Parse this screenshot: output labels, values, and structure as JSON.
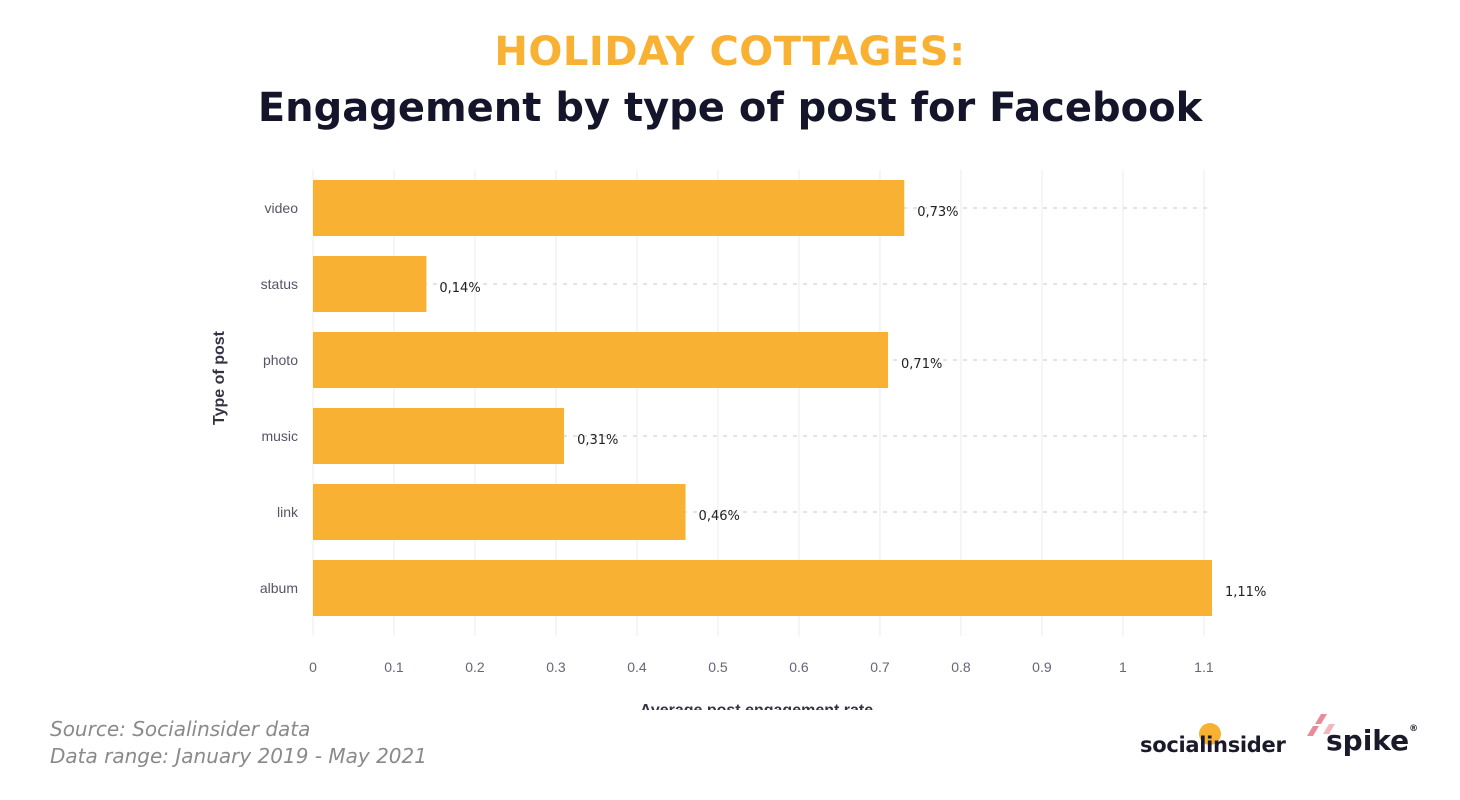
{
  "header": {
    "title": "HOLIDAY COTTAGES:",
    "subtitle": "Engagement by type of post for Facebook"
  },
  "footer": {
    "source": "Source: Socialinsider data",
    "range": "Data range: January 2019 - May 2021"
  },
  "logos": {
    "socialinsider": "socialinsider",
    "spike": "spike"
  },
  "colors": {
    "bar": "#f8b133",
    "title_accent": "#f8b133",
    "subtitle": "#14142b",
    "grid": "#ececec"
  },
  "chart_data": {
    "type": "bar",
    "orientation": "horizontal",
    "categories": [
      "video",
      "status",
      "photo",
      "music",
      "link",
      "album"
    ],
    "values": [
      0.73,
      0.14,
      0.71,
      0.31,
      0.46,
      1.11
    ],
    "data_labels": [
      "0,73%",
      "0,14%",
      "0,71%",
      "0,31%",
      "0,46%",
      "1,11%"
    ],
    "xlabel": "Average post engagement rate",
    "ylabel": "Type of post",
    "xlim": [
      0,
      1.11
    ],
    "xticks": [
      0,
      0.1,
      0.2,
      0.3,
      0.4,
      0.5,
      0.6,
      0.7,
      0.8,
      0.9,
      1,
      1.1
    ],
    "xtick_labels": [
      "0",
      "0.1",
      "0.2",
      "0.3",
      "0.4",
      "0.5",
      "0.6",
      "0.7",
      "0.8",
      "0.9",
      "1",
      "1.1"
    ],
    "grid": true,
    "legend": "none"
  }
}
